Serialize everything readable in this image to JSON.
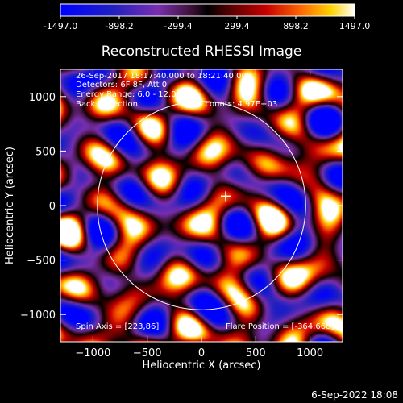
{
  "colorbar": {
    "ticks": [
      "-1497.0",
      "-898.2",
      "-299.4",
      "299.4",
      "898.2",
      "1497.0"
    ]
  },
  "chart_data": {
    "type": "heatmap",
    "title": "Reconstructed RHESSI Image",
    "xlabel": "Heliocentric X (arcsec)",
    "ylabel": "Heliocentric Y (arcsec)",
    "xlim": [
      -1300,
      1300
    ],
    "ylim": [
      -1250,
      1250
    ],
    "xticks": [
      -1000,
      -500,
      0,
      500,
      1000
    ],
    "yticks": [
      -1000,
      -500,
      0,
      500,
      1000
    ],
    "xtick_labels": [
      "−1000",
      "−500",
      "0",
      "500",
      "1000"
    ],
    "ytick_labels": [
      "−1000",
      "−500",
      "0",
      "500",
      "1000"
    ],
    "value_range": [
      -1497.0,
      1497.0
    ],
    "solar_limb": {
      "center": [
        0,
        0
      ],
      "radius": 960
    },
    "cross_marker": [
      223,
      86
    ],
    "annotations": {
      "time_range": "26-Sep-2017 18:17:40.000 to 18:21:40.000",
      "detectors": "Detectors: 6F 8F, Att 0",
      "energy": "Energy Range: 6.0 - 12.0 keV",
      "method": "Back Projection",
      "counts": "Total counts: 4.97E+03",
      "spin_axis": "Spin Axis = [223,86]",
      "flare_position": "Flare Position = [-364,668]"
    }
  },
  "footer": {
    "timestamp": "6-Sep-2022 18:08"
  }
}
